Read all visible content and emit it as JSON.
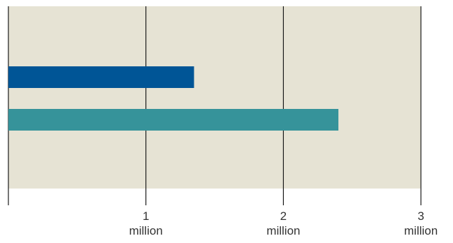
{
  "chart_data": {
    "type": "bar",
    "orientation": "horizontal",
    "title": "",
    "xlabel": "",
    "ylabel": "",
    "xlim": [
      0,
      3
    ],
    "grid": true,
    "series": [
      {
        "values": [
          1.35
        ],
        "color": "#005596"
      },
      {
        "values": [
          2.4
        ],
        "color": "#36939a"
      }
    ],
    "ticks": [
      {
        "value": 1,
        "label": "1",
        "unit": "million"
      },
      {
        "value": 2,
        "label": "2",
        "unit": "million"
      },
      {
        "value": 3,
        "label": "3",
        "unit": "million"
      }
    ],
    "colors": {
      "plot_background": "#e6e3d4",
      "gridline": "#1a1a1a"
    }
  }
}
